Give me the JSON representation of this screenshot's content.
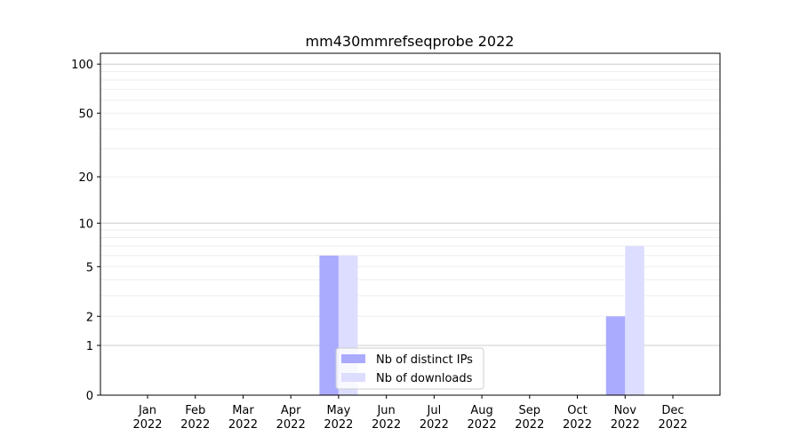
{
  "chart_data": {
    "type": "bar",
    "title": "mm430mmrefseqprobe 2022",
    "xlabel": "",
    "ylabel": "",
    "yscale": "log(1+y)",
    "ylim": [
      0,
      120
    ],
    "yticks": [
      0,
      1,
      2,
      5,
      10,
      20,
      50,
      100
    ],
    "categories": [
      "Jan\n2022",
      "Feb\n2022",
      "Mar\n2022",
      "Apr\n2022",
      "May\n2022",
      "Jun\n2022",
      "Jul\n2022",
      "Aug\n2022",
      "Sep\n2022",
      "Oct\n2022",
      "Nov\n2022",
      "Dec\n2022"
    ],
    "series": [
      {
        "name": "Nb of distinct IPs",
        "color": "#aaaaff",
        "values": [
          0,
          0,
          0,
          0,
          6,
          0,
          0,
          0,
          0,
          0,
          2,
          0
        ]
      },
      {
        "name": "Nb of downloads",
        "color": "#ddddff",
        "values": [
          0,
          0,
          0,
          0,
          6,
          0,
          0,
          0,
          0,
          0,
          7,
          0
        ]
      }
    ],
    "grid": true,
    "legend_position": "lower-center"
  }
}
